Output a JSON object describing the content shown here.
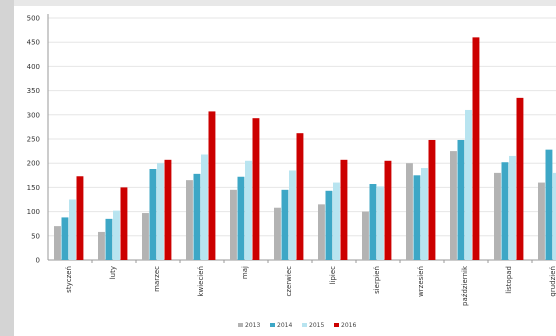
{
  "colors": {
    "series": [
      "#b3b3b3",
      "#3da7c6",
      "#b8e4f0",
      "#cc0000"
    ]
  },
  "chart_data": {
    "type": "bar",
    "title": "",
    "xlabel": "",
    "ylabel": "",
    "ylim": [
      0,
      500
    ],
    "yticks": [
      "0",
      "50",
      "100",
      "150",
      "200",
      "250",
      "300",
      "350",
      "400",
      "450",
      "500"
    ],
    "grid": true,
    "legend_position": "bottom-center",
    "categories": [
      "styczeń",
      "luty",
      "marzec",
      "kwiecień",
      "maj",
      "czerwiec",
      "lipiec",
      "sierpień",
      "wrzesień",
      "październik",
      "listopad",
      "grudzień"
    ],
    "series": [
      {
        "name": "2013",
        "values": [
          70,
          58,
          97,
          165,
          145,
          108,
          115,
          100,
          200,
          225,
          180,
          160
        ]
      },
      {
        "name": "2014",
        "values": [
          88,
          85,
          188,
          178,
          172,
          145,
          143,
          157,
          175,
          248,
          202,
          228
        ]
      },
      {
        "name": "2015",
        "values": [
          125,
          102,
          200,
          218,
          205,
          185,
          160,
          152,
          190,
          310,
          215,
          180
        ]
      },
      {
        "name": "2016",
        "values": [
          173,
          150,
          207,
          307,
          293,
          262,
          207,
          205,
          248,
          460,
          335,
          250
        ]
      }
    ]
  }
}
